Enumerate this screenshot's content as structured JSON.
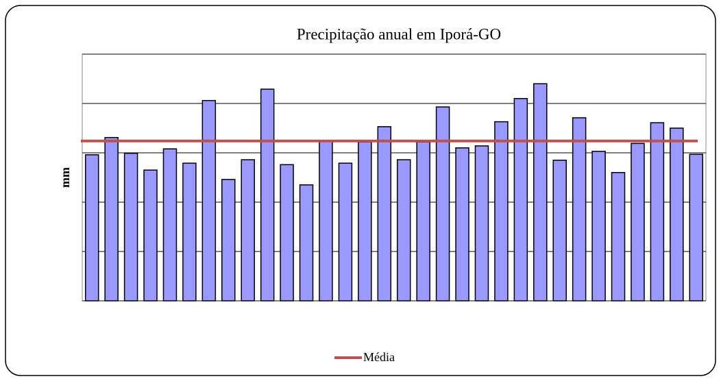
{
  "chart_data": {
    "type": "bar",
    "title": "Precipitação anual em Iporá-GO",
    "y_label": "mm",
    "categories": [
      null,
      null,
      null,
      null,
      null,
      null,
      null,
      null,
      null,
      null,
      null,
      null,
      null,
      null,
      null,
      null,
      null,
      null,
      null,
      null,
      null,
      null,
      null,
      null,
      null,
      null,
      null,
      null,
      null,
      null,
      null,
      null
    ],
    "series": [
      {
        "color": "#9999ff",
        "values": [
          2.96,
          3.31,
          2.99,
          2.65,
          3.08,
          2.79,
          4.06,
          2.46,
          2.86,
          4.29,
          2.76,
          2.35,
          3.24,
          2.79,
          3.22,
          3.53,
          2.86,
          3.22,
          3.93,
          3.1,
          3.14,
          3.63,
          4.1,
          4.4,
          2.85,
          3.71,
          3.03,
          2.6,
          3.19,
          3.61,
          3.5,
          2.97
        ]
      }
    ],
    "reference_line": {
      "name": "Média",
      "value": 3.24,
      "color": "#c0504d"
    },
    "ylim": [
      0,
      5
    ],
    "yticks": [
      0,
      1,
      2,
      3,
      4,
      5
    ],
    "grid": true,
    "legend": "bottom"
  }
}
